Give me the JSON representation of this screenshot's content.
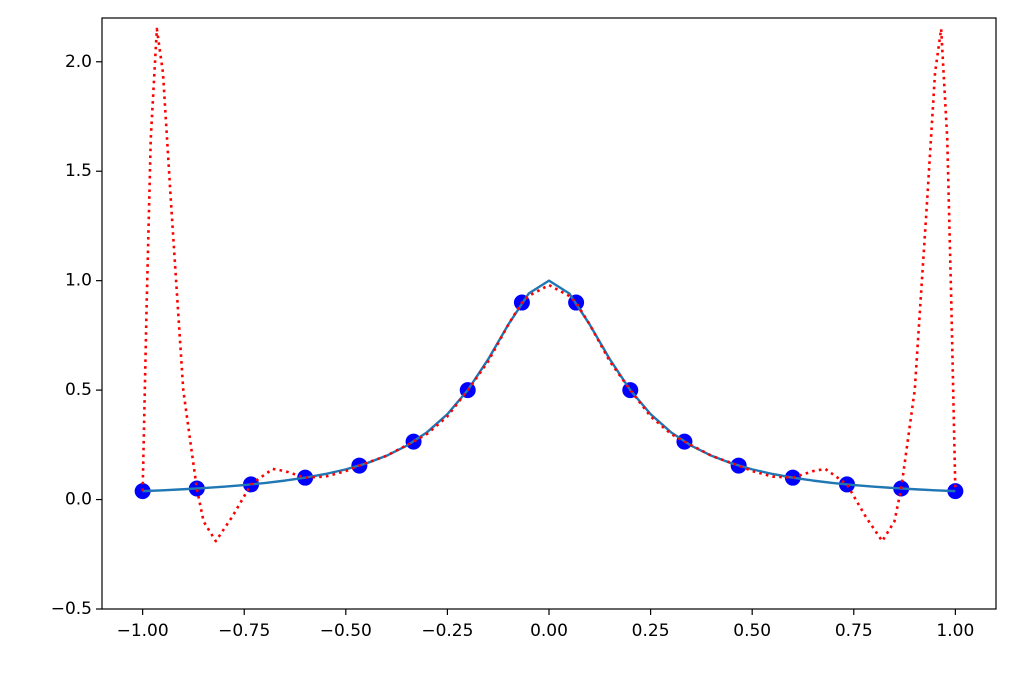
{
  "chart_data": {
    "type": "line",
    "xlim": [
      -1.1,
      1.1
    ],
    "ylim": [
      -0.5,
      2.2
    ],
    "xticks": [
      {
        "value": -1,
        "label": "−1.00"
      },
      {
        "value": -0.75,
        "label": "−0.75"
      },
      {
        "value": -0.5,
        "label": "−0.50"
      },
      {
        "value": -0.25,
        "label": "−0.25"
      },
      {
        "value": 0,
        "label": "0.00"
      },
      {
        "value": 0.25,
        "label": "0.25"
      },
      {
        "value": 0.5,
        "label": "0.50"
      },
      {
        "value": 0.75,
        "label": "0.75"
      },
      {
        "value": 1,
        "label": "1.00"
      }
    ],
    "yticks": [
      {
        "value": -0.5,
        "label": "−0.5"
      },
      {
        "value": 0,
        "label": "0.0"
      },
      {
        "value": 0.5,
        "label": "0.5"
      },
      {
        "value": 1,
        "label": "1.0"
      },
      {
        "value": 1.5,
        "label": "1.5"
      },
      {
        "value": 2,
        "label": "2.0"
      }
    ],
    "grid": false,
    "series": [
      {
        "type": "scatter",
        "color": "#0000ff",
        "x": [
          -1,
          -0.8667,
          -0.7333,
          -0.6,
          -0.4667,
          -0.3333,
          -0.2,
          -0.0667,
          0.0667,
          0.2,
          0.3333,
          0.4667,
          0.6,
          0.7333,
          0.8667,
          1
        ],
        "values": [
          0.0385,
          0.0506,
          0.0692,
          0.1,
          0.1552,
          0.2647,
          0.5,
          0.9,
          0.9,
          0.5,
          0.2647,
          0.1552,
          0.1,
          0.0692,
          0.0506,
          0.0385
        ]
      },
      {
        "type": "line",
        "color": "#1f77b4",
        "style": "solid",
        "x": [
          -1,
          -0.95,
          -0.9,
          -0.85,
          -0.8,
          -0.75,
          -0.7,
          -0.65,
          -0.6,
          -0.55,
          -0.5,
          -0.45,
          -0.4,
          -0.35,
          -0.3,
          -0.25,
          -0.2,
          -0.15,
          -0.1,
          -0.05,
          0,
          0.05,
          0.1,
          0.15,
          0.2,
          0.25,
          0.3,
          0.35,
          0.4,
          0.45,
          0.5,
          0.55,
          0.6,
          0.65,
          0.7,
          0.75,
          0.8,
          0.85,
          0.9,
          0.95,
          1
        ],
        "values": [
          0.0385,
          0.0424,
          0.0471,
          0.0525,
          0.0588,
          0.0664,
          0.0755,
          0.0865,
          0.1,
          0.1168,
          0.1379,
          0.1649,
          0.2,
          0.2462,
          0.3077,
          0.3902,
          0.5,
          0.64,
          0.8,
          0.9412,
          1,
          0.9412,
          0.8,
          0.64,
          0.5,
          0.3902,
          0.3077,
          0.2462,
          0.2,
          0.1649,
          0.1379,
          0.1168,
          0.1,
          0.0865,
          0.0755,
          0.0664,
          0.0588,
          0.0525,
          0.0471,
          0.0424,
          0.0385
        ]
      },
      {
        "type": "line",
        "color": "#ff0000",
        "style": "dotted",
        "x": [
          -1,
          -0.99,
          -0.98,
          -0.965,
          -0.95,
          -0.93,
          -0.9,
          -0.8667,
          -0.85,
          -0.82,
          -0.78,
          -0.7333,
          -0.68,
          -0.65,
          -0.6,
          -0.55,
          -0.5,
          -0.4667,
          -0.4,
          -0.3333,
          -0.3,
          -0.25,
          -0.2,
          -0.15,
          -0.1,
          -0.0667,
          -0.05,
          0,
          0.05,
          0.0667,
          0.1,
          0.15,
          0.2,
          0.25,
          0.3,
          0.3333,
          0.4,
          0.4667,
          0.5,
          0.55,
          0.6,
          0.65,
          0.68,
          0.7333,
          0.78,
          0.82,
          0.85,
          0.8667,
          0.9,
          0.93,
          0.95,
          0.965,
          0.98,
          0.99,
          1
        ],
        "values": [
          0.0385,
          0.9,
          1.65,
          2.15,
          1.95,
          1.35,
          0.5,
          0.0506,
          -0.1,
          -0.19,
          -0.08,
          0.069,
          0.14,
          0.13,
          0.1,
          0.105,
          0.13,
          0.1552,
          0.2,
          0.2647,
          0.3,
          0.38,
          0.5,
          0.63,
          0.8,
          0.9,
          0.93,
          0.98,
          0.93,
          0.9,
          0.8,
          0.63,
          0.5,
          0.38,
          0.3,
          0.2647,
          0.2,
          0.1552,
          0.13,
          0.105,
          0.1,
          0.13,
          0.14,
          0.069,
          -0.08,
          -0.19,
          -0.1,
          0.0506,
          0.5,
          1.35,
          1.95,
          2.15,
          1.65,
          0.9,
          0.0385
        ]
      }
    ]
  }
}
